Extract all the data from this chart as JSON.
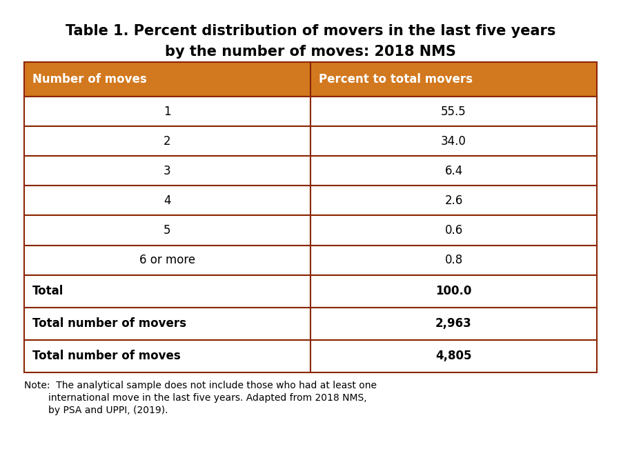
{
  "title_line1": "Table 1. Percent distribution of movers in the last five years",
  "title_line2": "by the number of moves: 2018 NMS",
  "header": [
    "Number of moves",
    "Percent to total movers"
  ],
  "rows": [
    [
      "1",
      "55.5"
    ],
    [
      "2",
      "34.0"
    ],
    [
      "3",
      "6.4"
    ],
    [
      "4",
      "2.6"
    ],
    [
      "5",
      "0.6"
    ],
    [
      "6 or more",
      "0.8"
    ]
  ],
  "bold_rows": [
    [
      "Total",
      "100.0"
    ],
    [
      "Total number of movers",
      "2,963"
    ],
    [
      "Total number of moves",
      "4,805"
    ]
  ],
  "note_line1": "Note:  The analytical sample does not include those who had at least one",
  "note_line2": "        international move in the last five years. Adapted from 2018 NMS,",
  "note_line3": "        by PSA and UPPI, (2019).",
  "header_bg": "#D2781E",
  "header_text": "#FFFFFF",
  "border_color": "#8B2500",
  "title_fontsize": 15,
  "header_fontsize": 12,
  "cell_fontsize": 12,
  "note_fontsize": 10,
  "col_split": 0.5
}
